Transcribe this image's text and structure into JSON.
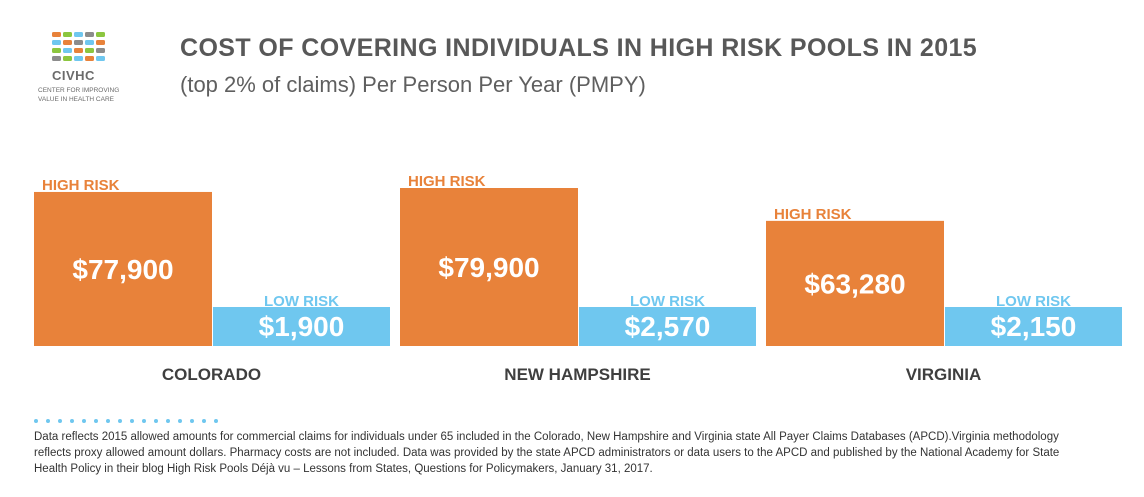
{
  "header": {
    "title": "COST OF COVERING INDIVIDUALS IN HIGH RISK POOLS IN 2015",
    "subtitle": "(top 2% of claims) Per Person Per Year (PMPY)"
  },
  "logo": {
    "name": "CIVHC",
    "tagline_1": "CENTER FOR IMPROVING",
    "tagline_2": "VALUE IN HEALTH CARE"
  },
  "colors": {
    "high_risk": "#E8823A",
    "low_risk": "#6FC7EF",
    "text_dark": "#595959"
  },
  "chart_data": {
    "type": "bar",
    "categories": [
      "COLORADO",
      "NEW HAMPSHIRE",
      "VIRGINIA"
    ],
    "series": [
      {
        "name": "HIGH RISK",
        "values": [
          77900,
          79900,
          63280
        ],
        "labels": [
          "$77,900",
          "$79,900",
          "$63,280"
        ]
      },
      {
        "name": "LOW RISK",
        "values": [
          1900,
          2570,
          2150
        ],
        "labels": [
          "$1,900",
          "$2,570",
          "$2,150"
        ]
      }
    ]
  },
  "footnote": "Data reflects 2015 allowed amounts for commercial claims for individuals under 65 included in the Colorado, New Hampshire and Virginia state All Payer Claims Databases (APCD).Virginia methodology reflects proxy allowed amount dollars. Pharmacy costs are not included. Data was provided by the state APCD administrators or data users to the APCD and published by the National Academy for State Health Policy in their blog High Risk Pools Déjà vu – Lessons from States, Questions for Policymakers, January 31, 2017."
}
